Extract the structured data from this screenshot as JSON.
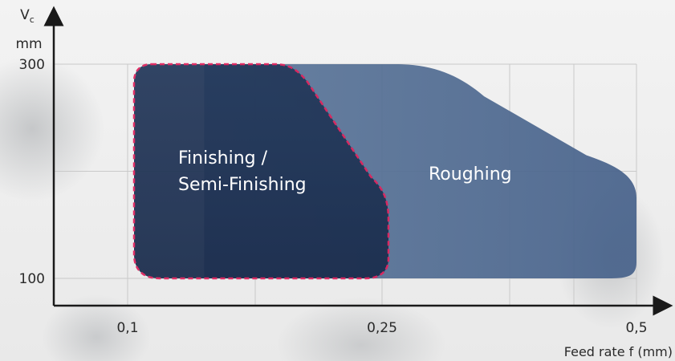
{
  "chart_data": {
    "type": "area",
    "y_axis": {
      "symbol_main": "V",
      "symbol_sub": "c",
      "unit": "mm",
      "ticks": [
        {
          "value": 100,
          "label": "100"
        },
        {
          "value": 300,
          "label": "300"
        }
      ],
      "range": [
        75,
        325
      ]
    },
    "x_axis": {
      "label": "Feed rate f (mm)",
      "ticks": [
        {
          "value": 0.1,
          "label": "0,1"
        },
        {
          "value": 0.25,
          "label": "0,25"
        },
        {
          "value": 0.5,
          "label": "0,5"
        }
      ],
      "gridlines": [
        0.1,
        0.15,
        0.25,
        0.35,
        0.45,
        0.5
      ],
      "range": [
        0.05,
        0.52
      ]
    },
    "y_gridlines": [
      100,
      200,
      300
    ],
    "grid": true,
    "regions": [
      {
        "name": "Roughing",
        "label_lines": [
          "Roughing"
        ],
        "color": "#4f6b8f",
        "outline": [
          [
            0.13,
            300
          ],
          [
            0.26,
            300
          ],
          [
            0.33,
            270
          ],
          [
            0.47,
            210
          ],
          [
            0.5,
            180
          ],
          [
            0.5,
            110
          ],
          [
            0.47,
            100
          ],
          [
            0.13,
            100
          ]
        ],
        "label_pos": [
          0.39,
          198
        ]
      },
      {
        "name": "Finishing / Semi-Finishing",
        "label_lines": [
          "Finishing /",
          "Semi-Finishing"
        ],
        "color": "#1f3150",
        "border_color": "#e0245e",
        "outline": [
          [
            0.1,
            300
          ],
          [
            0.15,
            300
          ],
          [
            0.25,
            200
          ],
          [
            0.25,
            110
          ],
          [
            0.23,
            100
          ],
          [
            0.1,
            100
          ]
        ],
        "label_pos": [
          0.12,
          215
        ]
      }
    ],
    "colors": {
      "axis": "#1a1a1a",
      "grid": "#c9c9c9",
      "tick_text": "#2a2a2a",
      "label_text": "#ffffff"
    }
  }
}
